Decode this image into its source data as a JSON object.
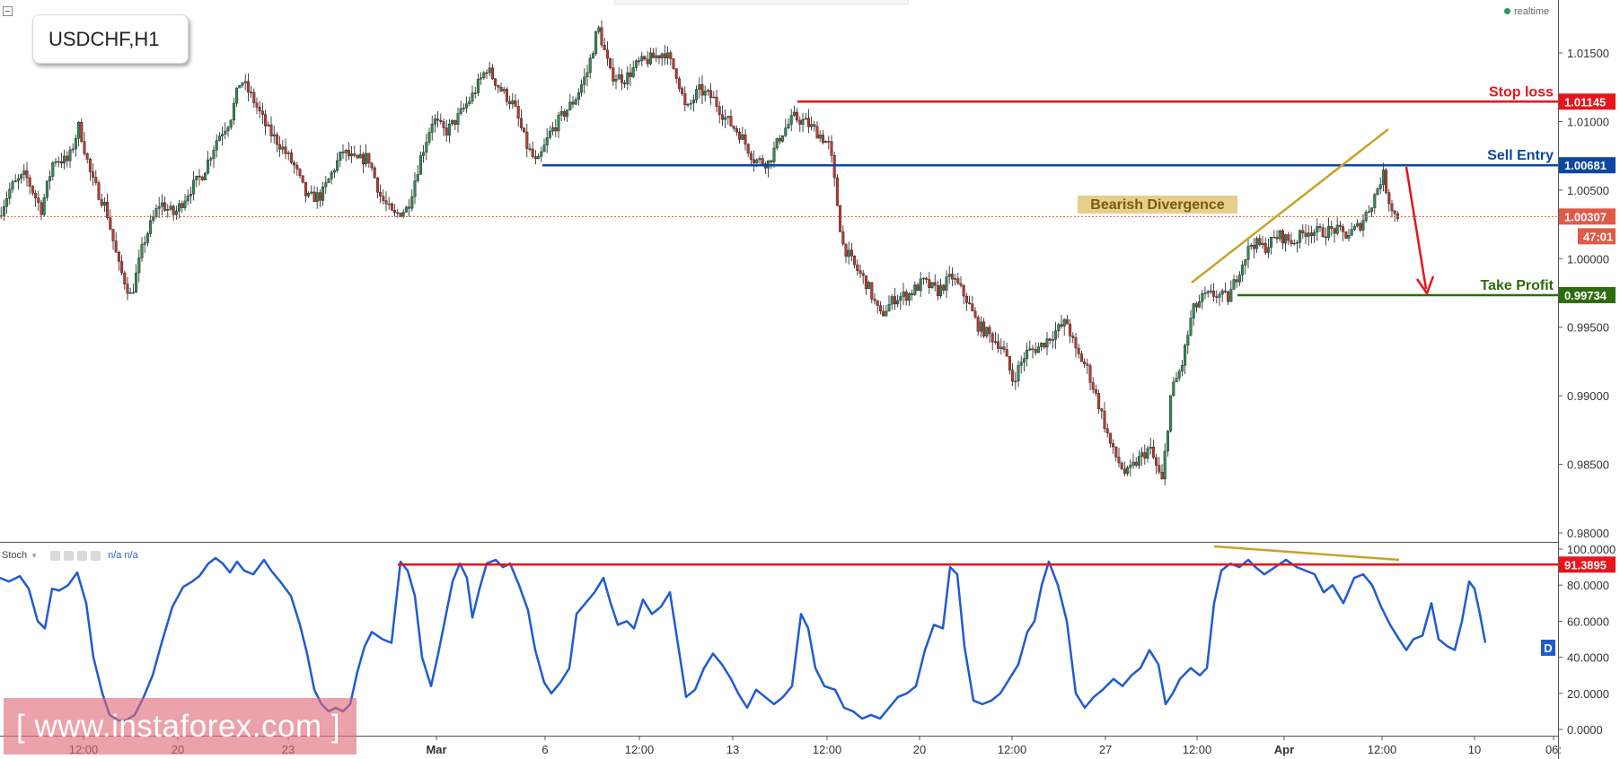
{
  "symbol": "USDCHF,H1",
  "status": "realtime",
  "indicator": {
    "name": "Stoch",
    "values": "n/a n/a",
    "badge": "D"
  },
  "watermark": "[ www.instaforex.com ]",
  "colors": {
    "bull": "#2e8b57",
    "bear": "#c0392b",
    "stop": "#e8141b",
    "entry": "#0d47a1",
    "profit": "#2e6b10",
    "current": "#e05a48",
    "divergence": "#c9a227",
    "stoch": "#1f5bd1"
  },
  "chart_data": [
    {
      "type": "candlestick",
      "y_axis_ticks": [
        "1.01500",
        "1.01000",
        "1.00500",
        "1.00000",
        "0.99500",
        "0.99000",
        "0.98500",
        "0.98000"
      ],
      "ylim": [
        0.9792,
        1.019
      ],
      "x_axis_ticks": [
        "12:00",
        "20",
        "23",
        "Mar",
        "6",
        "12:00",
        "13",
        "12:00",
        "20",
        "12:00",
        "27",
        "12:00",
        "Apr",
        "12:00",
        "10",
        "06:"
      ],
      "x_axis_bold": [
        "Mar",
        "Apr"
      ],
      "levels": [
        {
          "label": "Stop loss",
          "value": 1.01145,
          "tag": "1.01145"
        },
        {
          "label": "Sell Entry",
          "value": 1.00681,
          "tag": "1.00681"
        },
        {
          "label": "Take Profit",
          "value": 0.99734,
          "tag": "0.99734"
        },
        {
          "label": "",
          "value": 1.00307,
          "tag": "1.00307"
        }
      ],
      "countdown": "47:01",
      "annotations": [
        {
          "text": "Bearish Divergence"
        }
      ],
      "price_path": [
        [
          0,
          1.0031
        ],
        [
          14,
          1.0052
        ],
        [
          30,
          1.0061
        ],
        [
          48,
          1.0036
        ],
        [
          62,
          1.0073
        ],
        [
          78,
          1.0071
        ],
        [
          90,
          1.0097
        ],
        [
          104,
          1.0058
        ],
        [
          120,
          1.0037
        ],
        [
          134,
          0.9995
        ],
        [
          148,
          0.9972
        ],
        [
          162,
          1.0012
        ],
        [
          180,
          1.0041
        ],
        [
          196,
          1.0032
        ],
        [
          212,
          1.0049
        ],
        [
          228,
          1.0062
        ],
        [
          244,
          1.0088
        ],
        [
          258,
          1.0101
        ],
        [
          270,
          1.0131
        ],
        [
          284,
          1.0116
        ],
        [
          300,
          1.0094
        ],
        [
          314,
          1.0083
        ],
        [
          330,
          1.0067
        ],
        [
          344,
          1.0044
        ],
        [
          360,
          1.0046
        ],
        [
          374,
          1.0066
        ],
        [
          384,
          1.0078
        ],
        [
          398,
          1.0071
        ],
        [
          412,
          1.0074
        ],
        [
          426,
          1.0045
        ],
        [
          440,
          1.0031
        ],
        [
          456,
          1.0037
        ],
        [
          470,
          1.0073
        ],
        [
          484,
          1.0102
        ],
        [
          498,
          1.0092
        ],
        [
          512,
          1.0103
        ],
        [
          528,
          1.0119
        ],
        [
          544,
          1.0139
        ],
        [
          560,
          1.0123
        ],
        [
          574,
          1.0112
        ],
        [
          588,
          1.0083
        ],
        [
          600,
          1.0068
        ],
        [
          614,
          1.0091
        ],
        [
          630,
          1.0106
        ],
        [
          642,
          1.0116
        ],
        [
          656,
          1.0136
        ],
        [
          668,
          1.0169
        ],
        [
          682,
          1.0134
        ],
        [
          698,
          1.0131
        ],
        [
          712,
          1.0142
        ],
        [
          728,
          1.0146
        ],
        [
          742,
          1.0151
        ],
        [
          756,
          1.0134
        ],
        [
          766,
          1.0107
        ],
        [
          780,
          1.0123
        ],
        [
          796,
          1.0117
        ],
        [
          810,
          1.0102
        ],
        [
          826,
          1.0091
        ],
        [
          842,
          1.0072
        ],
        [
          858,
          1.007
        ],
        [
          872,
          1.0091
        ],
        [
          886,
          1.0103
        ],
        [
          900,
          1.0099
        ],
        [
          914,
          1.0091
        ],
        [
          926,
          1.0082
        ],
        [
          932,
          1.0052
        ],
        [
          940,
          1.0011
        ],
        [
          952,
          0.9996
        ],
        [
          968,
          0.9981
        ],
        [
          982,
          0.9958
        ],
        [
          998,
          0.9971
        ],
        [
          1014,
          0.9974
        ],
        [
          1030,
          0.9983
        ],
        [
          1046,
          0.9976
        ],
        [
          1062,
          0.9987
        ],
        [
          1078,
          0.9971
        ],
        [
          1090,
          0.9952
        ],
        [
          1104,
          0.9944
        ],
        [
          1118,
          0.9936
        ],
        [
          1130,
          0.9911
        ],
        [
          1144,
          0.9931
        ],
        [
          1160,
          0.9936
        ],
        [
          1176,
          0.9946
        ],
        [
          1190,
          0.9954
        ],
        [
          1200,
          0.9932
        ],
        [
          1212,
          0.9921
        ],
        [
          1226,
          0.9893
        ],
        [
          1240,
          0.9861
        ],
        [
          1256,
          0.9842
        ],
        [
          1268,
          0.9852
        ],
        [
          1282,
          0.9862
        ],
        [
          1296,
          0.9837
        ],
        [
          1306,
          0.9902
        ],
        [
          1318,
          0.9922
        ],
        [
          1330,
          0.9962
        ],
        [
          1342,
          0.9972
        ],
        [
          1356,
          0.9974
        ],
        [
          1370,
          0.9971
        ],
        [
          1382,
          0.9992
        ],
        [
          1396,
          1.0012
        ],
        [
          1410,
          1.0008
        ],
        [
          1426,
          1.0017
        ],
        [
          1442,
          1.0012
        ],
        [
          1458,
          1.0021
        ],
        [
          1472,
          1.0019
        ],
        [
          1488,
          1.0021
        ],
        [
          1502,
          1.0017
        ],
        [
          1516,
          1.0024
        ],
        [
          1530,
          1.0041
        ],
        [
          1542,
          1.0062
        ],
        [
          1548,
          1.0044
        ],
        [
          1556,
          1.0031
        ]
      ]
    },
    {
      "type": "line",
      "name": "Stoch",
      "y_axis_ticks": [
        "100.0000",
        "80.0000",
        "60.0000",
        "40.0000",
        "20.0000",
        "0.0000"
      ],
      "ylim": [
        0,
        100
      ],
      "levels": [
        {
          "value": 91.3895,
          "tag": "91.3895"
        }
      ],
      "path": [
        [
          0,
          84
        ],
        [
          10,
          82
        ],
        [
          22,
          85
        ],
        [
          32,
          78
        ],
        [
          42,
          60
        ],
        [
          50,
          56
        ],
        [
          58,
          78
        ],
        [
          66,
          77
        ],
        [
          76,
          80
        ],
        [
          86,
          87
        ],
        [
          96,
          70
        ],
        [
          104,
          40
        ],
        [
          114,
          20
        ],
        [
          122,
          8
        ],
        [
          132,
          5
        ],
        [
          140,
          5
        ],
        [
          150,
          8
        ],
        [
          160,
          18
        ],
        [
          170,
          30
        ],
        [
          180,
          48
        ],
        [
          192,
          68
        ],
        [
          204,
          79
        ],
        [
          214,
          82
        ],
        [
          222,
          85
        ],
        [
          232,
          92
        ],
        [
          240,
          95
        ],
        [
          248,
          92
        ],
        [
          256,
          87
        ],
        [
          264,
          93
        ],
        [
          272,
          88
        ],
        [
          282,
          86
        ],
        [
          294,
          94
        ],
        [
          302,
          88
        ],
        [
          312,
          82
        ],
        [
          324,
          74
        ],
        [
          334,
          58
        ],
        [
          342,
          42
        ],
        [
          350,
          22
        ],
        [
          358,
          14
        ],
        [
          366,
          10
        ],
        [
          374,
          12
        ],
        [
          382,
          10
        ],
        [
          390,
          14
        ],
        [
          398,
          32
        ],
        [
          406,
          46
        ],
        [
          414,
          54
        ],
        [
          426,
          50
        ],
        [
          436,
          48
        ],
        [
          446,
          93
        ],
        [
          454,
          88
        ],
        [
          462,
          74
        ],
        [
          470,
          40
        ],
        [
          480,
          24
        ],
        [
          488,
          42
        ],
        [
          496,
          62
        ],
        [
          504,
          82
        ],
        [
          512,
          92
        ],
        [
          520,
          84
        ],
        [
          526,
          62
        ],
        [
          534,
          78
        ],
        [
          542,
          92
        ],
        [
          552,
          94
        ],
        [
          560,
          90
        ],
        [
          568,
          92
        ],
        [
          578,
          80
        ],
        [
          588,
          66
        ],
        [
          596,
          44
        ],
        [
          606,
          26
        ],
        [
          614,
          20
        ],
        [
          624,
          26
        ],
        [
          634,
          34
        ],
        [
          642,
          64
        ],
        [
          652,
          70
        ],
        [
          662,
          76
        ],
        [
          672,
          84
        ],
        [
          680,
          70
        ],
        [
          688,
          58
        ],
        [
          698,
          60
        ],
        [
          706,
          56
        ],
        [
          716,
          72
        ],
        [
          726,
          64
        ],
        [
          736,
          68
        ],
        [
          746,
          76
        ],
        [
          756,
          44
        ],
        [
          764,
          18
        ],
        [
          774,
          22
        ],
        [
          784,
          34
        ],
        [
          794,
          42
        ],
        [
          804,
          36
        ],
        [
          814,
          28
        ],
        [
          822,
          20
        ],
        [
          832,
          12
        ],
        [
          842,
          22
        ],
        [
          852,
          18
        ],
        [
          862,
          14
        ],
        [
          872,
          18
        ],
        [
          882,
          24
        ],
        [
          892,
          64
        ],
        [
          900,
          56
        ],
        [
          908,
          34
        ],
        [
          918,
          24
        ],
        [
          930,
          22
        ],
        [
          940,
          12
        ],
        [
          950,
          10
        ],
        [
          960,
          6
        ],
        [
          970,
          8
        ],
        [
          980,
          6
        ],
        [
          990,
          12
        ],
        [
          1000,
          18
        ],
        [
          1010,
          20
        ],
        [
          1020,
          24
        ],
        [
          1030,
          44
        ],
        [
          1040,
          58
        ],
        [
          1050,
          56
        ],
        [
          1058,
          90
        ],
        [
          1066,
          86
        ],
        [
          1074,
          46
        ],
        [
          1084,
          16
        ],
        [
          1094,
          14
        ],
        [
          1104,
          16
        ],
        [
          1114,
          20
        ],
        [
          1124,
          28
        ],
        [
          1134,
          36
        ],
        [
          1144,
          54
        ],
        [
          1152,
          60
        ],
        [
          1160,
          80
        ],
        [
          1168,
          93
        ],
        [
          1178,
          80
        ],
        [
          1188,
          60
        ],
        [
          1198,
          20
        ],
        [
          1208,
          12
        ],
        [
          1218,
          18
        ],
        [
          1228,
          22
        ],
        [
          1240,
          28
        ],
        [
          1250,
          24
        ],
        [
          1260,
          30
        ],
        [
          1270,
          34
        ],
        [
          1280,
          44
        ],
        [
          1290,
          36
        ],
        [
          1298,
          14
        ],
        [
          1306,
          20
        ],
        [
          1314,
          28
        ],
        [
          1326,
          34
        ],
        [
          1336,
          30
        ],
        [
          1344,
          34
        ],
        [
          1352,
          70
        ],
        [
          1360,
          88
        ],
        [
          1370,
          92
        ],
        [
          1380,
          90
        ],
        [
          1390,
          94
        ],
        [
          1398,
          90
        ],
        [
          1408,
          86
        ],
        [
          1420,
          90
        ],
        [
          1432,
          94
        ],
        [
          1444,
          90
        ],
        [
          1454,
          88
        ],
        [
          1464,
          86
        ],
        [
          1474,
          76
        ],
        [
          1484,
          80
        ],
        [
          1496,
          70
        ],
        [
          1508,
          84
        ],
        [
          1518,
          86
        ],
        [
          1528,
          80
        ],
        [
          1538,
          68
        ],
        [
          1548,
          58
        ],
        [
          1558,
          50
        ],
        [
          1566,
          44
        ],
        [
          1574,
          50
        ],
        [
          1584,
          52
        ],
        [
          1594,
          70
        ],
        [
          1602,
          50
        ],
        [
          1612,
          46
        ],
        [
          1620,
          44
        ],
        [
          1628,
          60
        ],
        [
          1636,
          82
        ],
        [
          1642,
          78
        ],
        [
          1648,
          64
        ],
        [
          1654,
          48
        ]
      ]
    }
  ]
}
